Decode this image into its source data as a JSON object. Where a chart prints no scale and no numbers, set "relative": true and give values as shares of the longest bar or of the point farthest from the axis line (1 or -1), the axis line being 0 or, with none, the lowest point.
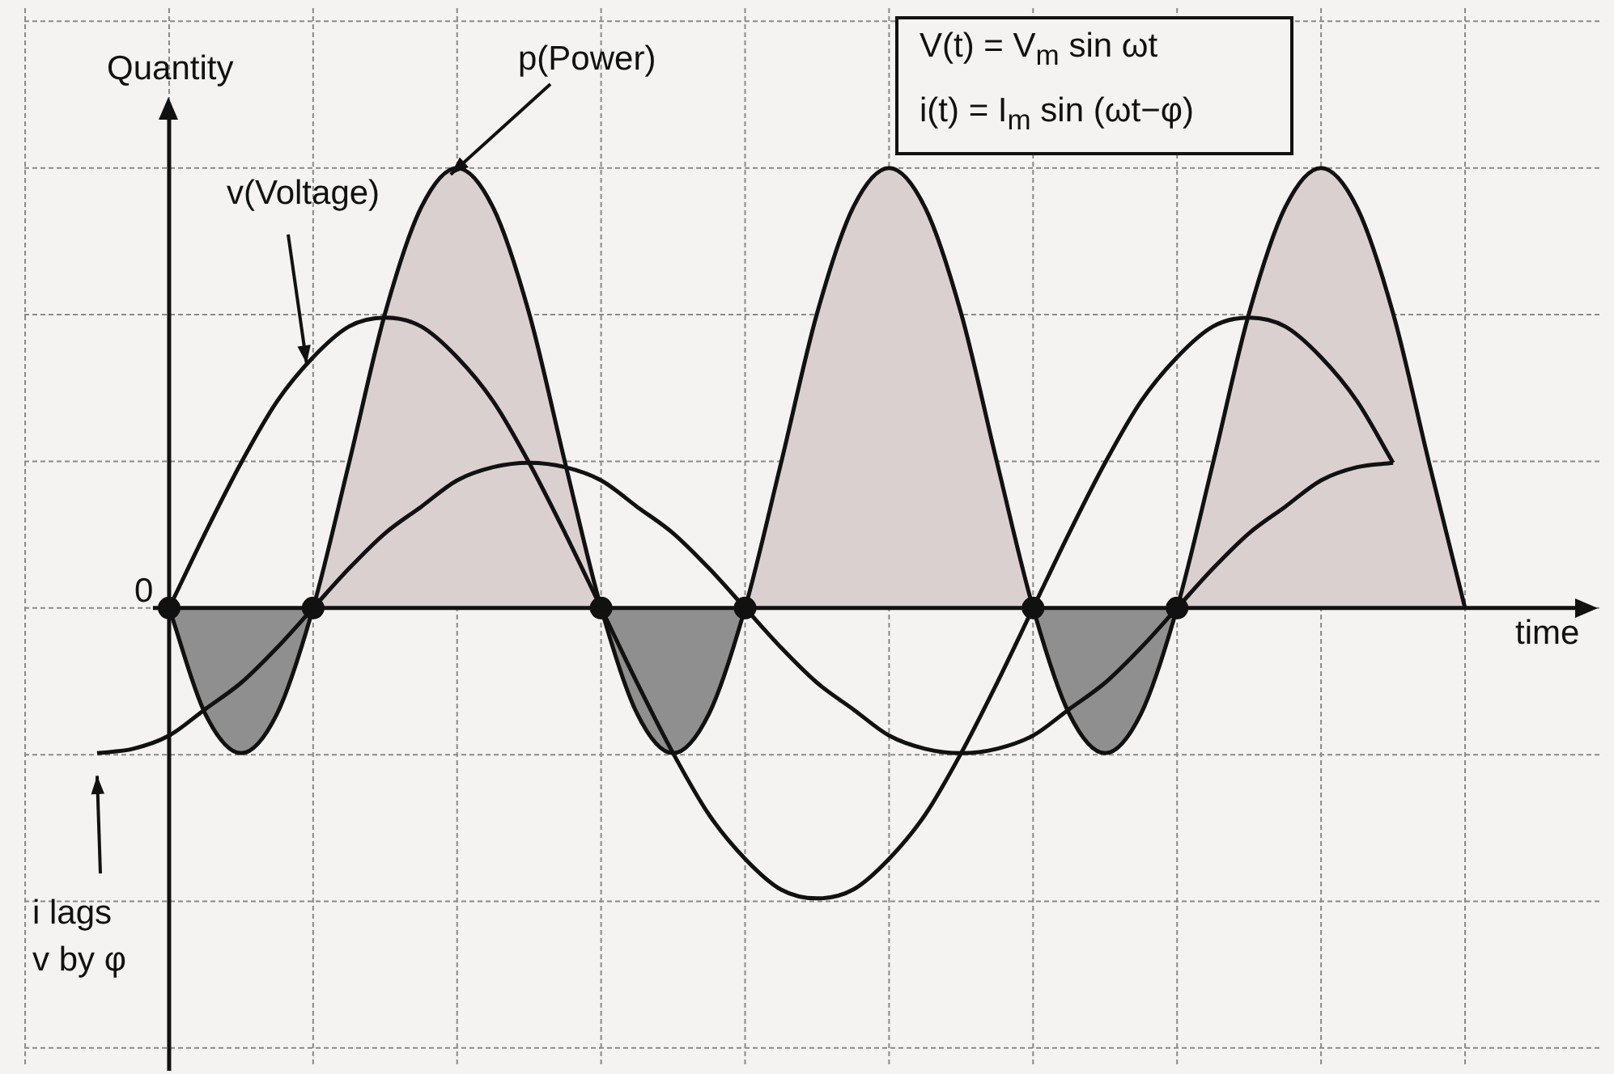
{
  "chart_data": {
    "type": "line",
    "relative": true,
    "grid": true,
    "legend": false,
    "ylabel": "Quantity",
    "xlabel": "time",
    "categories": [
      null,
      null,
      null,
      null,
      null,
      null,
      null,
      null,
      null,
      null,
      null,
      null,
      null,
      null,
      null,
      null,
      null,
      null,
      null,
      null,
      null,
      null,
      null,
      null,
      null,
      null,
      null,
      null,
      null,
      null,
      null,
      null,
      null,
      null,
      null,
      null,
      null,
      null,
      null
    ],
    "series": [
      {
        "name": "v(Voltage)",
        "type": "line",
        "color": "#111111",
        "values": [
          null,
          null,
          0,
          0.17,
          0.33,
          0.47,
          0.57,
          0.64,
          0.66,
          0.64,
          0.57,
          0.47,
          0.33,
          0.17,
          0,
          -0.17,
          -0.33,
          -0.47,
          -0.57,
          -0.64,
          -0.66,
          -0.64,
          -0.57,
          -0.47,
          -0.33,
          -0.17,
          0,
          0.17,
          0.33,
          0.47,
          0.57,
          0.64,
          0.66,
          0.64,
          0.57,
          0.47,
          0.33,
          null,
          null
        ]
      },
      {
        "type": "line",
        "color": "#111111",
        "values": [
          -0.33,
          -0.32,
          -0.29,
          -0.23,
          -0.17,
          -0.09,
          0,
          0.09,
          0.17,
          0.23,
          0.29,
          0.32,
          0.33,
          0.32,
          0.29,
          0.23,
          0.17,
          0.09,
          0,
          -0.09,
          -0.17,
          -0.23,
          -0.29,
          -0.32,
          -0.33,
          -0.32,
          -0.29,
          -0.23,
          -0.17,
          -0.09,
          0,
          0.09,
          0.17,
          0.23,
          0.29,
          0.32,
          0.33,
          null,
          null
        ]
      },
      {
        "name": "p(Power)",
        "type": "area",
        "color": "#111111",
        "values": [
          null,
          null,
          0,
          -0.24,
          -0.33,
          -0.24,
          0,
          0.33,
          0.67,
          0.91,
          1,
          0.91,
          0.67,
          0.33,
          0,
          -0.24,
          -0.33,
          -0.24,
          0,
          0.33,
          0.67,
          0.91,
          1,
          0.91,
          0.67,
          0.33,
          0,
          -0.24,
          -0.33,
          -0.24,
          0,
          0.33,
          0.67,
          0.91,
          1,
          0.91,
          0.67,
          0.33,
          0
        ]
      }
    ],
    "annotations": [
      "0",
      "V(t) = V$_{m}$ sin ωt",
      "i(t)  = I$_{m}$ sin (ωt−φ)",
      "i lags",
      "v by φ"
    ]
  }
}
